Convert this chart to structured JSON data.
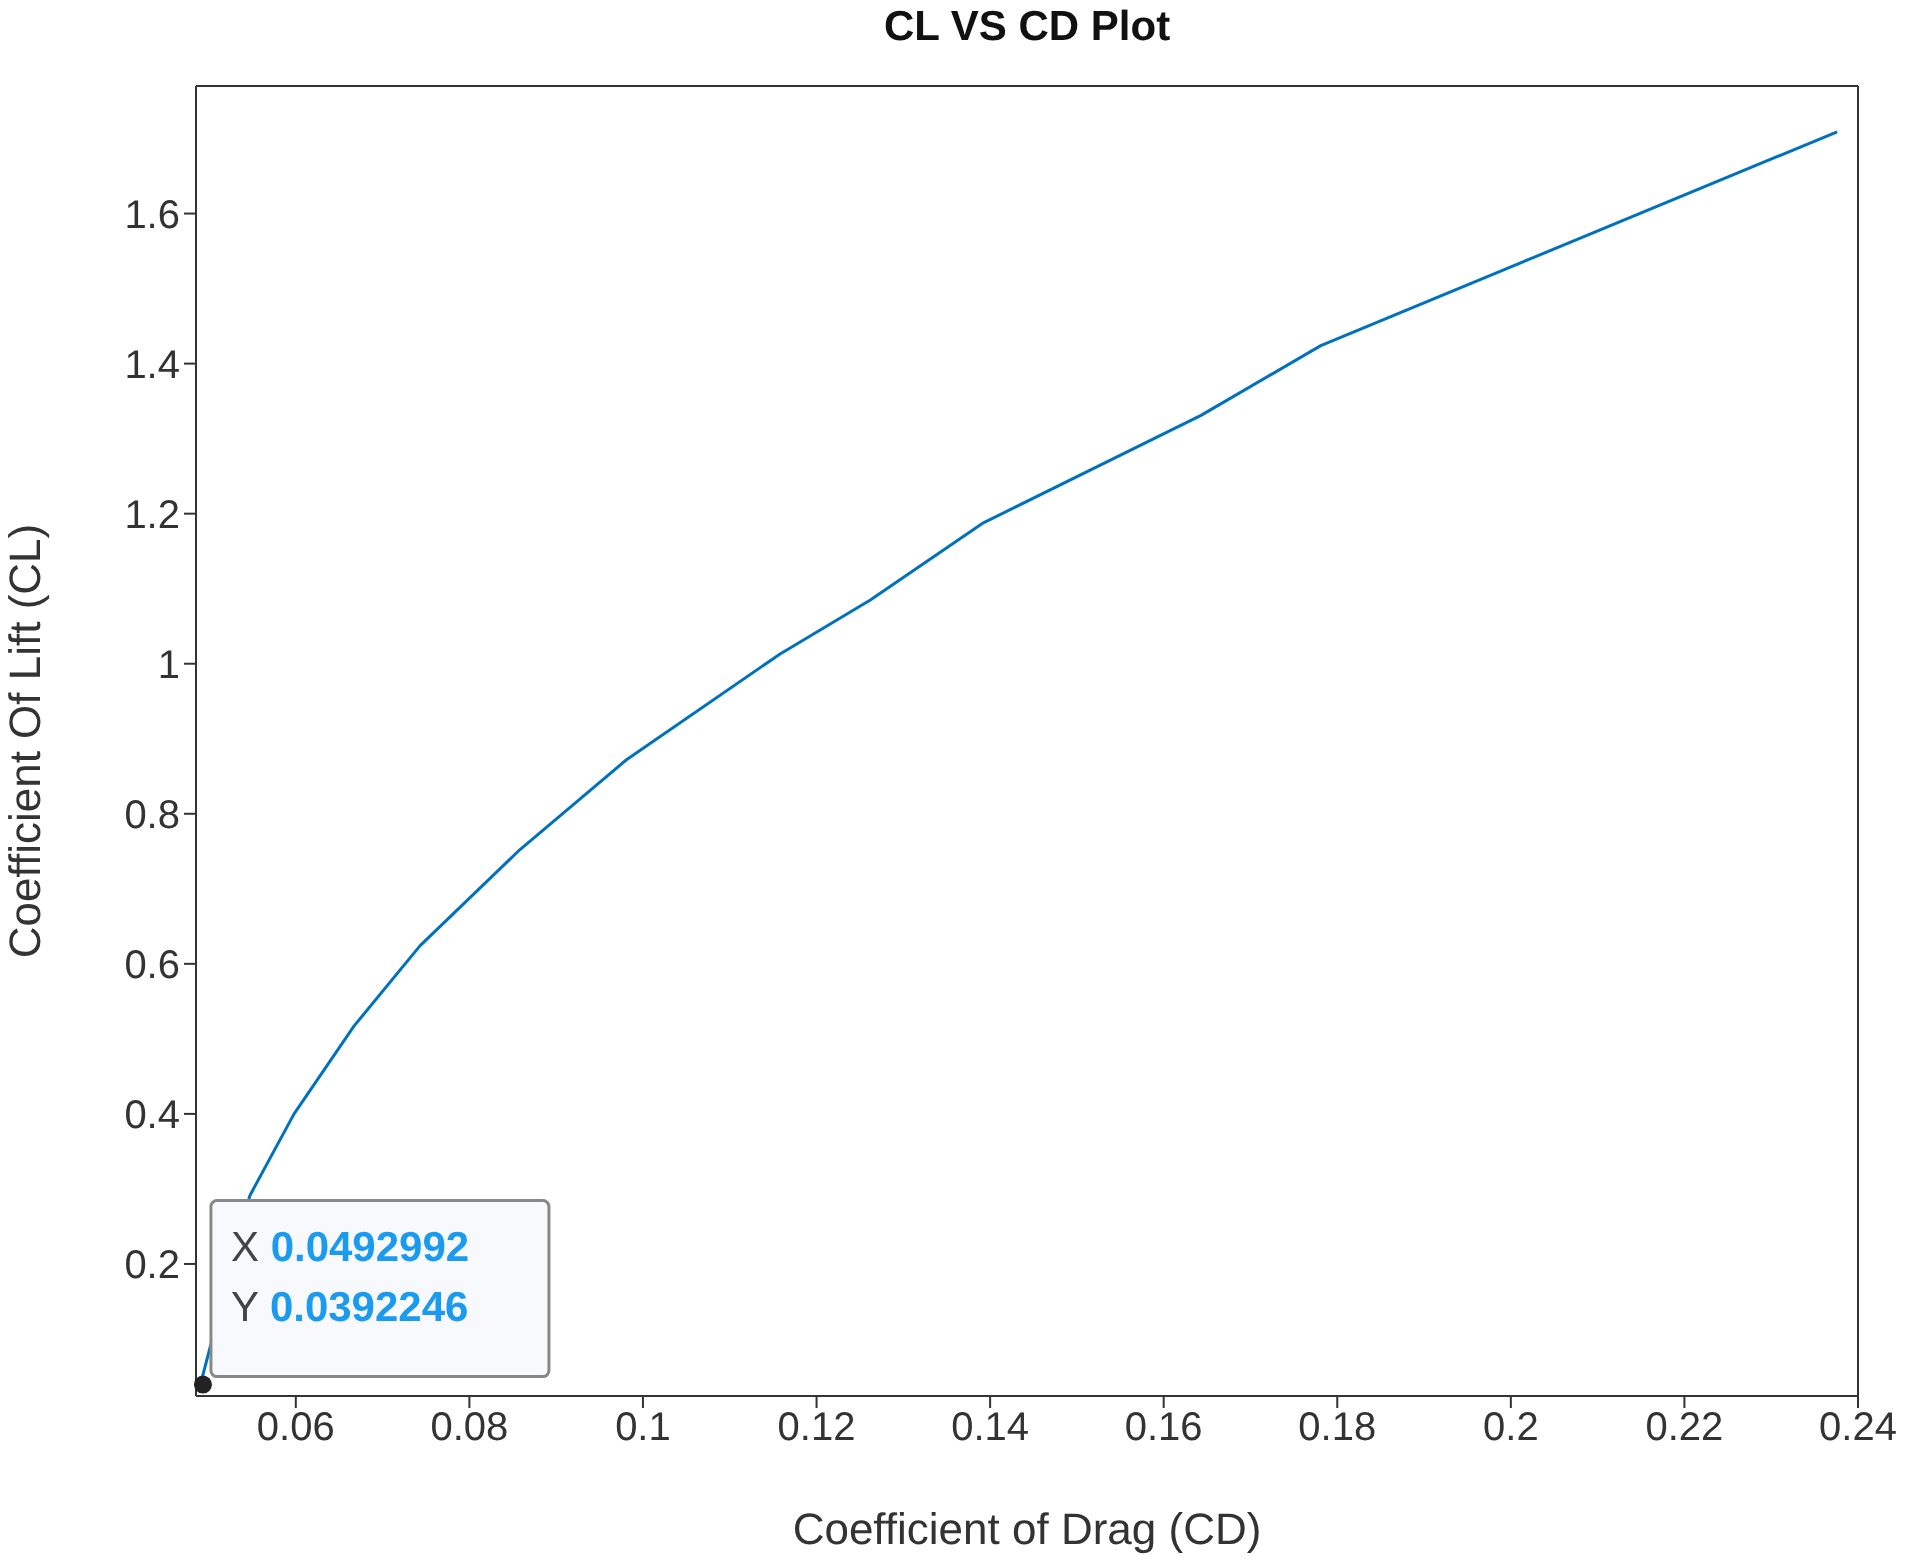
{
  "chart_data": {
    "type": "line",
    "title": "CL VS CD Plot",
    "xlabel": "Coefficient of Drag (CD)",
    "ylabel": "Coefficient Of Lift (CL)",
    "x": [
      0.049,
      0.0547,
      0.0598,
      0.0667,
      0.0743,
      0.0858,
      0.0981,
      0.1158,
      0.1262,
      0.1391,
      0.1643,
      0.1781,
      0.2376
    ],
    "series": [
      {
        "color": "#0072bd",
        "values": [
          0.039,
          0.291,
          0.4,
          0.517,
          0.624,
          0.752,
          0.872,
          1.013,
          1.085,
          1.187,
          1.331,
          1.424,
          1.709
        ]
      }
    ],
    "xlim": [
      0.0485,
      0.24
    ],
    "xticks": [
      0.06,
      0.08,
      0.1,
      0.12,
      0.14,
      0.16,
      0.18,
      0.2,
      0.22,
      0.24
    ],
    "ylim": [
      0.024,
      1.77
    ],
    "yticks": [
      0.2,
      0.4,
      0.6,
      0.8,
      1,
      1.2,
      1.4,
      1.6
    ],
    "grid": false,
    "legend": false,
    "marker": "none",
    "line_style": "solid",
    "annotations": [
      {
        "text": "X 0.0492992\nY 0.0392246",
        "x": 0.0492992,
        "y": 0.0392246
      }
    ]
  }
}
